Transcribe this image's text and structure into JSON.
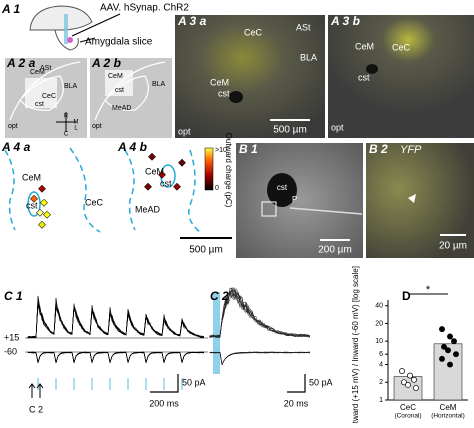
{
  "panels": {
    "a1": {
      "label": "A 1",
      "virus": "AAV. hSynap. ChR2",
      "slice": "Amygdala slice"
    },
    "a2a": {
      "label": "A 2 a",
      "regions": [
        "CeM",
        "ASt",
        "BLA",
        "CeC",
        "cst",
        "opt"
      ],
      "compass": [
        "R",
        "M",
        "L",
        "C"
      ]
    },
    "a2b": {
      "label": "A 2 b",
      "regions": [
        "CeM",
        "BLA",
        "cst",
        "MeAD",
        "opt"
      ]
    },
    "a3a": {
      "label": "A 3 a",
      "regions": [
        "CeC",
        "ASt",
        "CeM",
        "BLA",
        "cst",
        "opt"
      ],
      "scale": "500 µm"
    },
    "a3b": {
      "label": "A 3 b",
      "regions": [
        "CeM",
        "CeC",
        "cst",
        "opt"
      ]
    },
    "a4a": {
      "label": "A 4 a",
      "regions": [
        "CeM",
        "CeC",
        "cst"
      ]
    },
    "a4b": {
      "label": "A 4 b",
      "regions": [
        "CeM",
        "cst",
        "MeAD"
      ],
      "colorbar_title": "Outward charge (pC)",
      "colorbar_ticks": [
        ">10",
        "0"
      ],
      "scale": "500 µm"
    },
    "b1": {
      "label": "B 1",
      "regions": [
        "cst",
        "P"
      ],
      "scale": "200 µm"
    },
    "b2": {
      "label": "B 2",
      "stain": "YFP",
      "scale": "20 µm"
    },
    "c1": {
      "label": "C 1",
      "holding": [
        "+15",
        "-60"
      ],
      "scale_y": "50 pA",
      "scale_x": "200 ms",
      "marker": "C 2"
    },
    "c2": {
      "label": "C 2",
      "scale_y": "50 pA",
      "scale_x": "20 ms"
    }
  },
  "chart_data": {
    "type": "bar",
    "panel_label": "D",
    "ylabel": "Outward (+15 mV) / Inward (-60 mV) [log scale]",
    "categories": [
      "CeC",
      "CeM"
    ],
    "category_notes": [
      "(Coronal)",
      "(Horizontal)"
    ],
    "values": [
      2.5,
      9
    ],
    "points": [
      [
        3.1,
        2.6,
        2.2,
        2.0,
        1.8,
        1.6
      ],
      [
        16,
        12,
        10,
        8,
        7,
        6,
        5,
        4
      ]
    ],
    "colors": [
      "#ffffff",
      "#000000"
    ],
    "bar_color": "#d9d9d9",
    "significance": "*",
    "log_scale": true,
    "ylim": [
      1,
      50
    ],
    "yticks": [
      1,
      2,
      4,
      6,
      10,
      20,
      40
    ]
  }
}
